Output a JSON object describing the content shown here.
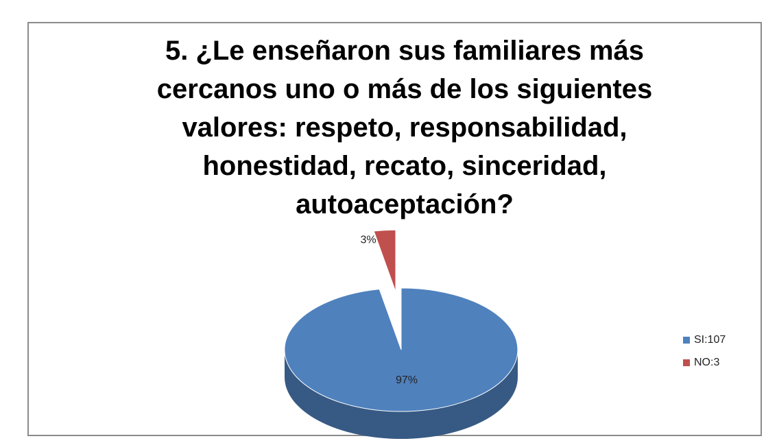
{
  "chart_data": {
    "type": "pie",
    "title": "5. ¿Le enseñaron sus familiares más cercanos uno o más de los siguientes valores: respeto, responsabilidad, honestidad, recato, sinceridad, autoaceptación?",
    "categories": [
      "SI:107",
      "NO:3"
    ],
    "values": [
      97,
      3
    ],
    "value_labels": [
      "97%",
      "3%"
    ],
    "colors": [
      "#4f81bd",
      "#c0504d"
    ],
    "legend": "right"
  }
}
